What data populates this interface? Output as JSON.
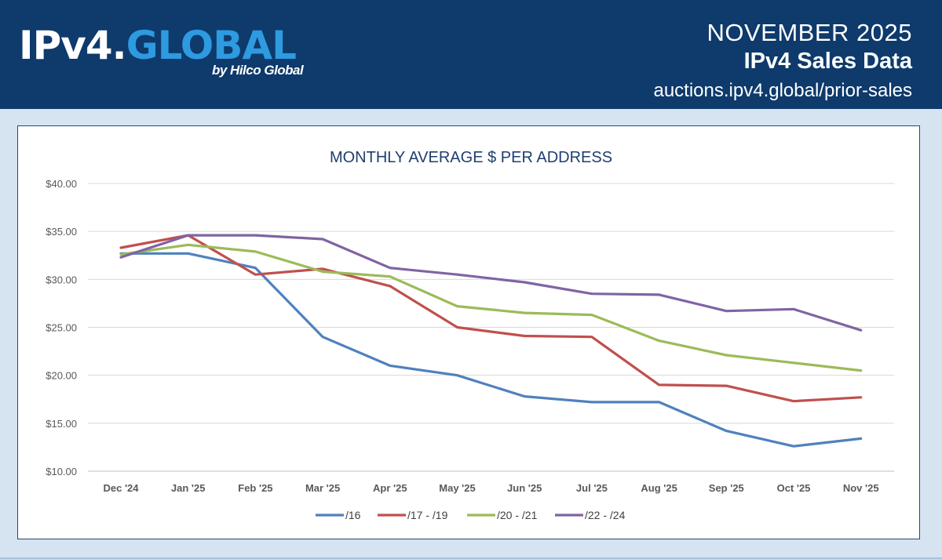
{
  "header": {
    "logo_ipv4": "IPv4.",
    "logo_global": "GLOBAL",
    "logo_by": "by Hilco Global",
    "date": "NOVEMBER 2025",
    "title": "IPv4 Sales Data",
    "url": "auctions.ipv4.global/prior-sales"
  },
  "colors": {
    "header_bg": "#0e3a6c",
    "accent": "#2e9ae0",
    "page_bg": "#d6e4f2"
  },
  "chart_data": {
    "type": "line",
    "title": "MONTHLY AVERAGE $ PER ADDRESS",
    "xlabel": "",
    "ylabel": "",
    "ylim": [
      10,
      40
    ],
    "y_ticks": [
      10,
      15,
      20,
      25,
      30,
      35,
      40
    ],
    "y_tick_labels": [
      "$10.00",
      "$15.00",
      "$20.00",
      "$25.00",
      "$30.00",
      "$35.00",
      "$40.00"
    ],
    "categories": [
      "Dec '24",
      "Jan '25",
      "Feb '25",
      "Mar '25",
      "Apr '25",
      "May '25",
      "Jun '25",
      "Jul '25",
      "Aug '25",
      "Sep '25",
      "Oct '25",
      "Nov '25"
    ],
    "grid": "horizontal",
    "legend": "bottom",
    "series": [
      {
        "name": "/16",
        "color": "#4f81bd",
        "values": [
          32.7,
          32.7,
          31.2,
          24.0,
          21.0,
          20.0,
          17.8,
          17.2,
          17.2,
          14.2,
          12.6,
          13.4
        ]
      },
      {
        "name": "/17 - /19",
        "color": "#c0504d",
        "values": [
          33.3,
          34.6,
          30.5,
          31.1,
          29.3,
          25.0,
          24.1,
          24.0,
          19.0,
          18.9,
          17.3,
          17.7
        ]
      },
      {
        "name": "/20 - /21",
        "color": "#9bbb59",
        "values": [
          32.6,
          33.6,
          32.9,
          30.8,
          30.3,
          27.2,
          26.5,
          26.3,
          23.6,
          22.1,
          21.3,
          20.5
        ]
      },
      {
        "name": "/22 - /24",
        "color": "#8064a2",
        "values": [
          32.3,
          34.6,
          34.6,
          34.2,
          31.2,
          30.5,
          29.7,
          28.5,
          28.4,
          26.7,
          26.9,
          24.7
        ]
      }
    ]
  }
}
